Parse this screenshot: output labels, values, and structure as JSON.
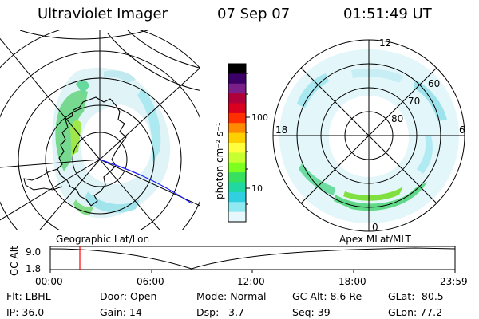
{
  "header": {
    "title": "Ultraviolet Imager",
    "date": "07 Sep 07",
    "time": "01:51:49 UT"
  },
  "left_panel": {
    "caption": "Geographic Lat/Lon"
  },
  "right_panel": {
    "caption": "Apex MLat/MLT",
    "mlt_labels": [
      "12",
      "18",
      "6",
      "0"
    ],
    "mlat_labels": [
      "60",
      "70",
      "80"
    ]
  },
  "colorbar": {
    "unit": "photon cm⁻² s⁻¹",
    "ticks": [
      "100",
      "10"
    ],
    "colors": [
      "#000000",
      "#3b0066",
      "#7a1f8a",
      "#b0003a",
      "#d90020",
      "#ff3000",
      "#ff8a00",
      "#ffd000",
      "#ffff40",
      "#c8ff30",
      "#7dff20",
      "#38e060",
      "#20d8a0",
      "#30d0e0",
      "#90e8f0",
      "#e6f8fc"
    ]
  },
  "altitude_strip": {
    "axis_label": "GC Alt",
    "y_ticks": [
      "9.0",
      "1.8"
    ],
    "x_ticks": [
      "00:00",
      "06:00",
      "12:00",
      "18:00",
      "23:59"
    ],
    "marker_color": "#ff0000"
  },
  "info": {
    "flt": "Flt: LBHL",
    "door": "Door: Open",
    "mode": "Mode: Normal",
    "gcalt": "GC Alt: 8.6 Re",
    "glat": "GLat:  -80.5",
    "ip": "IP: 36.0",
    "gain": "Gain: 14",
    "dsp_label": "Dsp:",
    "dsp_value": "3.7",
    "seq": "Seq: 39",
    "glon": "GLon:  77.2"
  }
}
